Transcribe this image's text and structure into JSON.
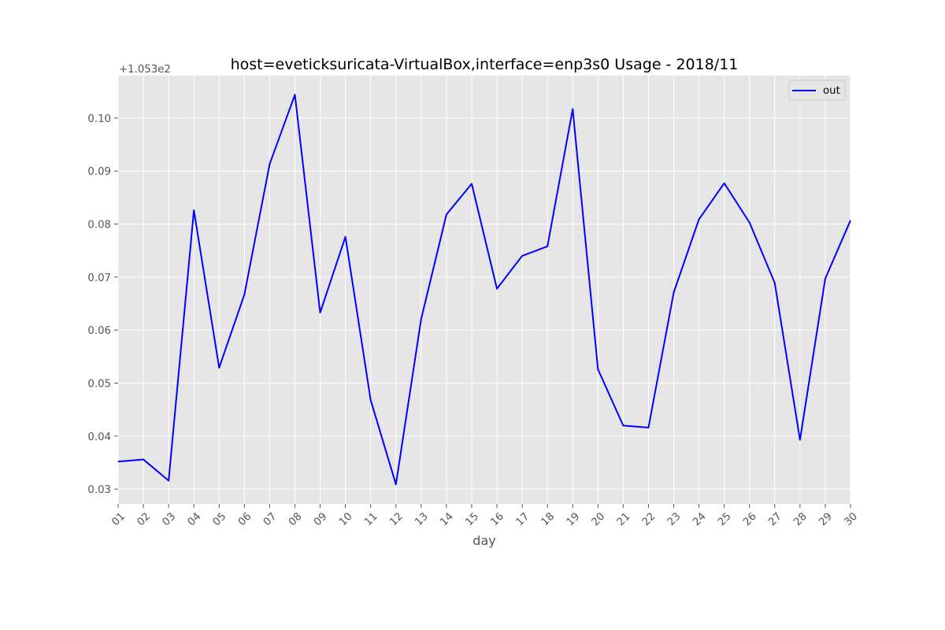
{
  "chart_data": {
    "type": "line",
    "title": "host=eveticksuricata-VirtualBox,interface=enp3s0 Usage - 2018/11",
    "xlabel": "day",
    "ylabel": "",
    "offset_label": "+1.053e2",
    "categories": [
      "01",
      "02",
      "03",
      "04",
      "05",
      "06",
      "07",
      "08",
      "09",
      "10",
      "11",
      "12",
      "13",
      "14",
      "15",
      "16",
      "17",
      "18",
      "19",
      "20",
      "21",
      "22",
      "23",
      "24",
      "25",
      "26",
      "27",
      "28",
      "29",
      "30"
    ],
    "series": [
      {
        "name": "out",
        "color": "#0000ff",
        "values": [
          0.0352,
          0.0356,
          0.0316,
          0.0826,
          0.0529,
          0.0667,
          0.0913,
          0.1044,
          0.0633,
          0.0776,
          0.0468,
          0.0309,
          0.0621,
          0.0818,
          0.0876,
          0.0678,
          0.074,
          0.0758,
          0.1017,
          0.0526,
          0.042,
          0.0416,
          0.0671,
          0.0809,
          0.0877,
          0.0803,
          0.0689,
          0.0393,
          0.0697,
          0.0807
        ]
      }
    ],
    "ylim": [
      0.0272,
      0.108
    ],
    "yticks": [
      0.03,
      0.04,
      0.05,
      0.06,
      0.07,
      0.08,
      0.09,
      0.1
    ],
    "ytick_labels": [
      "0.03",
      "0.04",
      "0.05",
      "0.06",
      "0.07",
      "0.08",
      "0.09",
      "0.10"
    ],
    "grid": true,
    "legend_position": "top-right",
    "style": {
      "plot_background": "#e5e5e5",
      "grid_color": "#ffffff",
      "tick_color": "#555555"
    }
  }
}
